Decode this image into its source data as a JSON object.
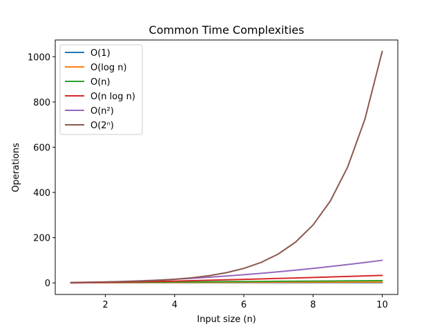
{
  "chart_data": {
    "type": "line",
    "title": "Common Time Complexities",
    "xlabel": "Input size (n)",
    "ylabel": "Operations",
    "xlim": [
      0.55,
      10.45
    ],
    "ylim": [
      -51.15,
      1074.15
    ],
    "xticks": [
      2,
      4,
      6,
      8,
      10
    ],
    "yticks": [
      0,
      200,
      400,
      600,
      800,
      1000
    ],
    "grid": false,
    "legend_position": "top-left",
    "x": [
      1,
      1.5,
      2,
      2.5,
      3,
      3.5,
      4,
      4.5,
      5,
      5.5,
      6,
      6.5,
      7,
      7.5,
      8,
      8.5,
      9,
      9.5,
      10
    ],
    "series": [
      {
        "name": "O(1)",
        "color": "#1f77b4",
        "values": [
          1,
          1,
          1,
          1,
          1,
          1,
          1,
          1,
          1,
          1,
          1,
          1,
          1,
          1,
          1,
          1,
          1,
          1,
          1
        ]
      },
      {
        "name": "O(log n)",
        "color": "#ff7f0e",
        "values": [
          0,
          0.58,
          1,
          1.32,
          1.58,
          1.81,
          2,
          2.17,
          2.32,
          2.46,
          2.58,
          2.7,
          2.81,
          2.91,
          3,
          3.09,
          3.17,
          3.25,
          3.32
        ]
      },
      {
        "name": "O(n)",
        "color": "#2ca02c",
        "values": [
          1,
          1.5,
          2,
          2.5,
          3,
          3.5,
          4,
          4.5,
          5,
          5.5,
          6,
          6.5,
          7,
          7.5,
          8,
          8.5,
          9,
          9.5,
          10
        ]
      },
      {
        "name": "O(n log n)",
        "color": "#d62728",
        "values": [
          0,
          0.88,
          2,
          3.3,
          4.75,
          6.33,
          8,
          9.76,
          11.61,
          13.53,
          15.51,
          17.55,
          19.65,
          21.8,
          24,
          26.24,
          28.53,
          30.86,
          33.22
        ]
      },
      {
        "name": "O(n²)",
        "color": "#9467bd",
        "values": [
          1,
          2.25,
          4,
          6.25,
          9,
          12.25,
          16,
          20.25,
          25,
          30.25,
          36,
          42.25,
          49,
          56.25,
          64,
          72.25,
          81,
          90.25,
          100
        ]
      },
      {
        "name": "O(2ⁿ)",
        "color": "#8c564b",
        "values": [
          2,
          2.83,
          4,
          5.66,
          8,
          11.31,
          16,
          22.63,
          32,
          45.25,
          64,
          90.51,
          128,
          181.02,
          256,
          362.04,
          512,
          724.08,
          1024
        ]
      }
    ]
  }
}
